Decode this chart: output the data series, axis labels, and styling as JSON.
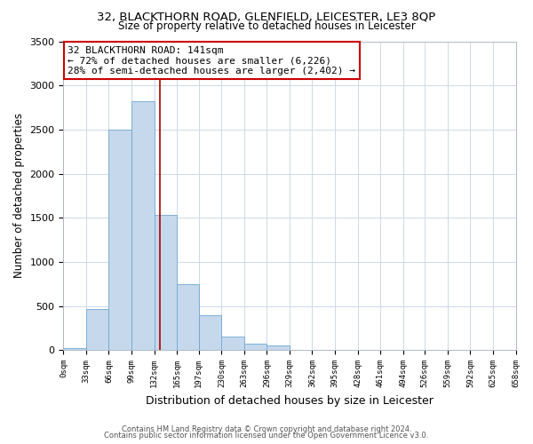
{
  "title1": "32, BLACKTHORN ROAD, GLENFIELD, LEICESTER, LE3 8QP",
  "title2": "Size of property relative to detached houses in Leicester",
  "xlabel": "Distribution of detached houses by size in Leicester",
  "ylabel": "Number of detached properties",
  "bar_color": "#c5d8ec",
  "bar_edge_color": "#6fa8d0",
  "vline_color": "#aa0000",
  "vline_x": 141,
  "annotation_line1": "32 BLACKTHORN ROAD: 141sqm",
  "annotation_line2": "← 72% of detached houses are smaller (6,226)",
  "annotation_line3": "28% of semi-detached houses are larger (2,402) →",
  "bin_edges": [
    0,
    33,
    66,
    99,
    132,
    165,
    197,
    230,
    263,
    296,
    329,
    362,
    395,
    428,
    461,
    494,
    526,
    559,
    592,
    625,
    658
  ],
  "bin_values": [
    18,
    470,
    2500,
    2820,
    1530,
    750,
    390,
    150,
    70,
    50,
    0,
    0,
    0,
    0,
    0,
    0,
    0,
    0,
    0,
    0
  ],
  "ylim": [
    0,
    3500
  ],
  "xlim": [
    0,
    658
  ],
  "yticks": [
    0,
    500,
    1000,
    1500,
    2000,
    2500,
    3000,
    3500
  ],
  "tick_labels": [
    "0sqm",
    "33sqm",
    "66sqm",
    "99sqm",
    "132sqm",
    "165sqm",
    "197sqm",
    "230sqm",
    "263sqm",
    "296sqm",
    "329sqm",
    "362sqm",
    "395sqm",
    "428sqm",
    "461sqm",
    "494sqm",
    "526sqm",
    "559sqm",
    "592sqm",
    "625sqm",
    "658sqm"
  ],
  "tick_positions": [
    0,
    33,
    66,
    99,
    132,
    165,
    197,
    230,
    263,
    296,
    329,
    362,
    395,
    428,
    461,
    494,
    526,
    559,
    592,
    625,
    658
  ],
  "footer_line1": "Contains HM Land Registry data © Crown copyright and database right 2024.",
  "footer_line2": "Contains public sector information licensed under the Open Government Licence v3.0.",
  "background_color": "#ffffff",
  "grid_color": "#ccd9e8"
}
